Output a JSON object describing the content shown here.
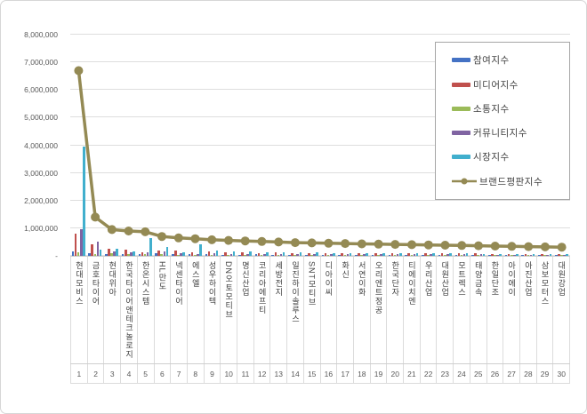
{
  "chart_data": {
    "type": "bar",
    "title": "",
    "categories": [
      "현대모비스",
      "금호타이어",
      "현대위아",
      "한국타이어앤테크놀로지",
      "한온시스템",
      "HL만도",
      "넥센타이어",
      "에스엘",
      "성우하이텍",
      "DN오토모티브",
      "명신산업",
      "코리아에프티",
      "세방전지",
      "일진하이솔루스",
      "SNT모티브",
      "디아이씨",
      "화신",
      "서연이화",
      "오리엔트정공",
      "한국단자",
      "티에이치엔",
      "우리산업",
      "대원산업",
      "모트렉스",
      "태양금속",
      "한일단조",
      "아이에이",
      "아진산업",
      "삼보모터스",
      "대원강업"
    ],
    "rank_labels": [
      "1",
      "2",
      "3",
      "4",
      "5",
      "6",
      "7",
      "8",
      "9",
      "10",
      "11",
      "12",
      "13",
      "14",
      "15",
      "16",
      "17",
      "18",
      "19",
      "20",
      "21",
      "22",
      "23",
      "24",
      "25",
      "26",
      "27",
      "28",
      "29",
      "30"
    ],
    "series": [
      {
        "key": "participation",
        "name": "참여지수",
        "type": "bar",
        "color": "#4472C4",
        "values": [
          150000,
          90000,
          60000,
          70000,
          60000,
          90000,
          50000,
          60000,
          50000,
          45000,
          40000,
          50000,
          40000,
          40000,
          40000,
          35000,
          30000,
          40000,
          30000,
          30000,
          30000,
          30000,
          30000,
          30000,
          25000,
          25000,
          20000,
          20000,
          20000,
          20000
        ]
      },
      {
        "key": "media",
        "name": "미디어지수",
        "type": "bar",
        "color": "#C0504D",
        "values": [
          800000,
          430000,
          250000,
          230000,
          120000,
          180000,
          200000,
          120000,
          150000,
          130000,
          120000,
          110000,
          120000,
          100000,
          110000,
          100000,
          100000,
          110000,
          90000,
          100000,
          90000,
          90000,
          90000,
          90000,
          85000,
          80000,
          80000,
          80000,
          80000,
          75000
        ]
      },
      {
        "key": "communication",
        "name": "소통지수",
        "type": "bar",
        "color": "#9BBB59",
        "values": [
          120000,
          70000,
          110000,
          50000,
          60000,
          70000,
          45000,
          40000,
          40000,
          40000,
          35000,
          40000,
          35000,
          35000,
          30000,
          30000,
          30000,
          30000,
          30000,
          30000,
          25000,
          25000,
          25000,
          25000,
          25000,
          20000,
          20000,
          20000,
          20000,
          20000
        ]
      },
      {
        "key": "community",
        "name": "커뮤니티지수",
        "type": "bar",
        "color": "#8064A2",
        "values": [
          950000,
          510000,
          160000,
          120000,
          130000,
          160000,
          90000,
          80000,
          90000,
          80000,
          80000,
          70000,
          70000,
          70000,
          70000,
          60000,
          60000,
          60000,
          60000,
          60000,
          55000,
          55000,
          50000,
          50000,
          50000,
          45000,
          45000,
          40000,
          40000,
          40000
        ]
      },
      {
        "key": "market",
        "name": "시장지수",
        "type": "bar",
        "color": "#41AFCD",
        "values": [
          3950000,
          220000,
          260000,
          150000,
          650000,
          310000,
          130000,
          430000,
          180000,
          160000,
          150000,
          140000,
          130000,
          120000,
          120000,
          110000,
          110000,
          100000,
          100000,
          100000,
          95000,
          90000,
          90000,
          85000,
          80000,
          80000,
          75000,
          70000,
          70000,
          65000
        ]
      },
      {
        "key": "brand-reputation",
        "name": "브랜드평판지수",
        "type": "line",
        "color": "#948A54",
        "values": [
          6700000,
          1400000,
          950000,
          900000,
          870000,
          700000,
          650000,
          620000,
          580000,
          560000,
          540000,
          520000,
          500000,
          480000,
          470000,
          455000,
          445000,
          435000,
          425000,
          415000,
          405000,
          395000,
          385000,
          375000,
          365000,
          355000,
          345000,
          335000,
          325000,
          315000
        ]
      }
    ],
    "y_axis": {
      "min": 0,
      "max": 8000000,
      "tick_interval": 1000000,
      "tick_labels": [
        "-",
        "1,000,000",
        "2,000,000",
        "3,000,000",
        "4,000,000",
        "5,000,000",
        "6,000,000",
        "7,000,000",
        "8,000,000"
      ]
    },
    "grid": true,
    "legend_position": "top-right"
  }
}
